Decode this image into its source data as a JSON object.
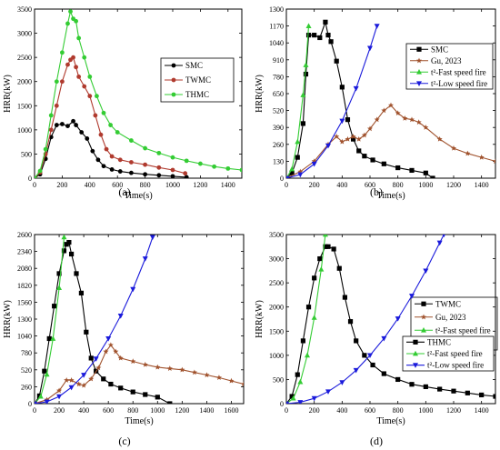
{
  "chart_data": [
    {
      "type": "line",
      "panel_label": "(a)",
      "xlabel": "Time(s)",
      "ylabel": "HRR(kW)",
      "xlim": [
        0,
        1500
      ],
      "ylim": [
        0,
        3500
      ],
      "xticks": [
        0,
        200,
        400,
        600,
        800,
        1000,
        1200,
        1400
      ],
      "yticks": [
        0,
        500,
        1000,
        1500,
        2000,
        2500,
        3000,
        3500
      ],
      "legend_position": "top-right",
      "series": [
        {
          "name": "SMC",
          "color": "#000000",
          "marker": "circle",
          "x": [
            0,
            40,
            80,
            120,
            160,
            200,
            240,
            280,
            300,
            340,
            380,
            420,
            460,
            500,
            560,
            620,
            700,
            800,
            900,
            1000,
            1100
          ],
          "y": [
            0,
            80,
            400,
            850,
            1100,
            1120,
            1080,
            1180,
            1100,
            950,
            820,
            560,
            380,
            250,
            180,
            140,
            110,
            80,
            60,
            40,
            20
          ]
        },
        {
          "name": "TWMC",
          "color": "#b03a2e",
          "marker": "circle",
          "x": [
            0,
            40,
            80,
            120,
            160,
            200,
            240,
            260,
            280,
            300,
            320,
            360,
            400,
            440,
            480,
            520,
            560,
            620,
            700,
            800,
            900,
            1000,
            1090
          ],
          "y": [
            0,
            120,
            500,
            1000,
            1500,
            2000,
            2350,
            2450,
            2500,
            2300,
            2100,
            1900,
            1700,
            1300,
            900,
            600,
            450,
            380,
            330,
            280,
            220,
            170,
            100
          ]
        },
        {
          "name": "THMC",
          "color": "#33cc33",
          "marker": "circle",
          "x": [
            0,
            40,
            80,
            120,
            160,
            200,
            240,
            260,
            280,
            300,
            320,
            360,
            400,
            450,
            500,
            550,
            600,
            700,
            800,
            900,
            1000,
            1100,
            1200,
            1300,
            1400,
            1500
          ],
          "y": [
            0,
            150,
            600,
            1300,
            2000,
            2600,
            3200,
            3450,
            3300,
            3250,
            2900,
            2500,
            2100,
            1700,
            1350,
            1100,
            950,
            780,
            620,
            520,
            430,
            360,
            300,
            240,
            200,
            170
          ]
        }
      ]
    },
    {
      "type": "line",
      "panel_label": "(b)",
      "xlabel": "Time(s)",
      "ylabel": "HRR(kW)",
      "xlim": [
        0,
        1500
      ],
      "ylim": [
        0,
        1300
      ],
      "xticks": [
        0,
        200,
        400,
        600,
        800,
        1000,
        1200,
        1400
      ],
      "yticks": [
        0,
        130,
        260,
        390,
        520,
        650,
        780,
        910,
        1040,
        1170,
        1300
      ],
      "legend_position": "top-right",
      "series": [
        {
          "name": "SMC",
          "color": "#000000",
          "marker": "square",
          "x": [
            0,
            40,
            80,
            120,
            140,
            160,
            200,
            240,
            280,
            300,
            320,
            360,
            400,
            440,
            480,
            520,
            560,
            620,
            700,
            800,
            900,
            1000,
            1050
          ],
          "y": [
            0,
            40,
            160,
            420,
            800,
            1100,
            1100,
            1080,
            1200,
            1100,
            1050,
            900,
            700,
            450,
            300,
            210,
            170,
            140,
            110,
            80,
            60,
            40,
            0
          ]
        },
        {
          "name": "Gu, 2023",
          "color": "#a0522d",
          "marker": "star",
          "x": [
            0,
            100,
            200,
            300,
            360,
            400,
            440,
            480,
            520,
            560,
            600,
            650,
            700,
            750,
            800,
            850,
            900,
            950,
            1000,
            1100,
            1200,
            1300,
            1400,
            1500
          ],
          "y": [
            0,
            50,
            130,
            260,
            320,
            280,
            300,
            320,
            300,
            330,
            380,
            450,
            520,
            560,
            500,
            460,
            450,
            430,
            390,
            300,
            230,
            190,
            160,
            130
          ]
        },
        {
          "name": "t²-Fast speed fire",
          "color": "#33cc33",
          "marker": "triangle-up",
          "x": [
            0,
            40,
            80,
            120,
            140,
            160
          ],
          "y": [
            0,
            70,
            280,
            640,
            870,
            1170
          ]
        },
        {
          "name": "t²-Low speed fire",
          "color": "#1a1adb",
          "marker": "triangle-down",
          "x": [
            0,
            100,
            200,
            300,
            400,
            500,
            600,
            650
          ],
          "y": [
            0,
            28,
            110,
            250,
            440,
            690,
            1000,
            1170
          ]
        }
      ]
    },
    {
      "type": "line",
      "panel_label": "(c)",
      "xlabel": "Time(s)",
      "ylabel": "HRR(kW)",
      "xlim": [
        0,
        1700
      ],
      "ylim": [
        0,
        2600
      ],
      "xticks": [
        0,
        200,
        400,
        600,
        800,
        1000,
        1200,
        1400,
        1600
      ],
      "yticks": [
        0,
        260,
        520,
        780,
        1040,
        1300,
        1560,
        1820,
        2080,
        2340,
        2600
      ],
      "legend_position": "right",
      "series": [
        {
          "name": "TWMC",
          "color": "#000000",
          "marker": "square",
          "x": [
            0,
            40,
            80,
            120,
            160,
            200,
            240,
            260,
            280,
            300,
            340,
            380,
            420,
            460,
            500,
            560,
            620,
            700,
            800,
            900,
            1000,
            1100
          ],
          "y": [
            0,
            120,
            500,
            1000,
            1500,
            2000,
            2350,
            2450,
            2480,
            2300,
            2000,
            1700,
            1100,
            700,
            500,
            380,
            300,
            240,
            180,
            140,
            100,
            0
          ]
        },
        {
          "name": "Gu, 2023",
          "color": "#a0522d",
          "marker": "star",
          "x": [
            0,
            100,
            200,
            260,
            300,
            360,
            400,
            460,
            520,
            580,
            620,
            660,
            700,
            800,
            900,
            1000,
            1100,
            1200,
            1300,
            1400,
            1500,
            1600,
            1700
          ],
          "y": [
            0,
            60,
            200,
            360,
            360,
            300,
            280,
            380,
            550,
            800,
            900,
            800,
            700,
            650,
            600,
            560,
            540,
            520,
            480,
            440,
            400,
            350,
            300
          ]
        },
        {
          "name": "t²-Fast speed fire",
          "color": "#33cc33",
          "marker": "triangle-up",
          "x": [
            0,
            50,
            100,
            150,
            200,
            240
          ],
          "y": [
            0,
            110,
            450,
            1000,
            1780,
            2560
          ]
        },
        {
          "name": "t²-Low speed fire",
          "color": "#1a1adb",
          "marker": "triangle-down",
          "x": [
            0,
            100,
            200,
            300,
            400,
            500,
            600,
            700,
            800,
            900,
            960
          ],
          "y": [
            0,
            28,
            110,
            250,
            440,
            690,
            1000,
            1350,
            1760,
            2230,
            2560
          ]
        }
      ]
    },
    {
      "type": "line",
      "panel_label": "(d)",
      "xlabel": "Time(s)",
      "ylabel": "HRR(kW)",
      "xlim": [
        0,
        1500
      ],
      "ylim": [
        0,
        3500
      ],
      "xticks": [
        0,
        200,
        400,
        600,
        800,
        1000,
        1200,
        1400
      ],
      "yticks": [
        0,
        500,
        1000,
        1500,
        2000,
        2500,
        3000,
        3500
      ],
      "legend_position": "right",
      "series": [
        {
          "name": "THMC",
          "color": "#000000",
          "marker": "square",
          "x": [
            0,
            40,
            80,
            120,
            160,
            200,
            240,
            280,
            300,
            340,
            380,
            420,
            460,
            500,
            560,
            620,
            700,
            800,
            900,
            1000,
            1100,
            1200,
            1300,
            1400,
            1500
          ],
          "y": [
            0,
            150,
            600,
            1300,
            2000,
            2600,
            3000,
            3250,
            3250,
            3200,
            2800,
            2200,
            1700,
            1300,
            1000,
            800,
            620,
            500,
            400,
            350,
            300,
            260,
            220,
            180,
            150
          ]
        },
        {
          "name": "t²-Fast speed fire",
          "color": "#33cc33",
          "marker": "triangle-up",
          "x": [
            0,
            50,
            100,
            150,
            200,
            250,
            280
          ],
          "y": [
            0,
            110,
            450,
            1000,
            1780,
            2780,
            3500
          ]
        },
        {
          "name": "t²-Low speed fire",
          "color": "#1a1adb",
          "marker": "triangle-down",
          "x": [
            0,
            100,
            200,
            300,
            400,
            500,
            600,
            700,
            800,
            900,
            1000,
            1100,
            1130
          ],
          "y": [
            0,
            28,
            110,
            250,
            440,
            690,
            1000,
            1350,
            1760,
            2230,
            2750,
            3330,
            3500
          ]
        }
      ]
    }
  ]
}
